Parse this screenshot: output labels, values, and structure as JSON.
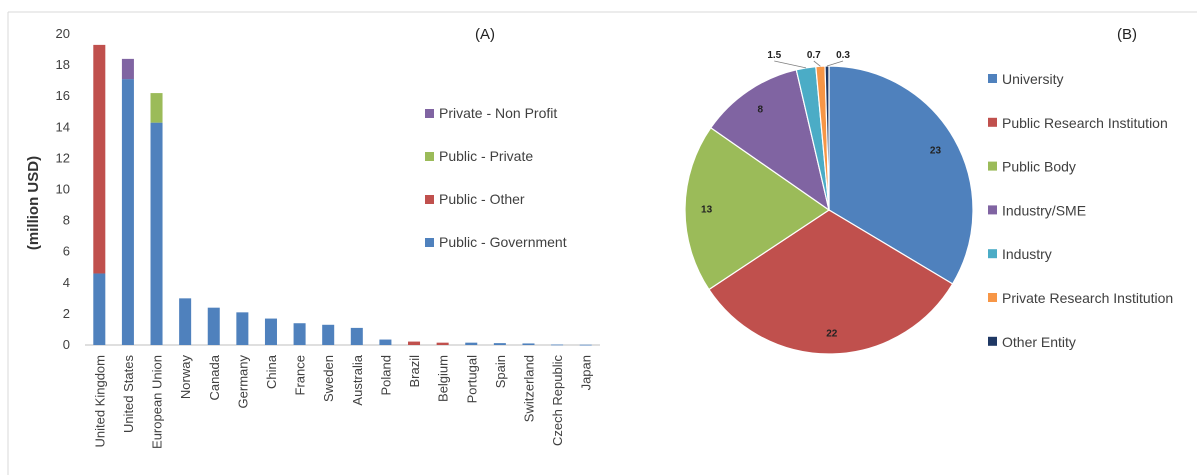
{
  "chart_data": [
    {
      "type": "bar",
      "stacked": true,
      "panel_label": "(A)",
      "title": "",
      "xlabel": "",
      "ylabel": "(million USD)",
      "ylim": [
        0,
        20
      ],
      "yticks": [
        0,
        2,
        4,
        6,
        8,
        10,
        12,
        14,
        16,
        18,
        20
      ],
      "grid": false,
      "legend_position": "right",
      "categories": [
        "United Kingdom",
        "United States",
        "European Union",
        "Norway",
        "Canada",
        "Germany",
        "China",
        "France",
        "Sweden",
        "Australia",
        "Poland",
        "Brazil",
        "Belgium",
        "Portugal",
        "Spain",
        "Switzerland",
        "Czech Republic",
        "Japan"
      ],
      "series": [
        {
          "name": "Public - Government",
          "color": "#4f81bd",
          "values": [
            4.6,
            17.1,
            14.3,
            3.0,
            2.4,
            2.1,
            1.7,
            1.4,
            1.3,
            1.1,
            0.35,
            0.0,
            0.0,
            0.15,
            0.12,
            0.1,
            0.03,
            0.02
          ]
        },
        {
          "name": "Public - Other",
          "color": "#c0504d",
          "values": [
            14.7,
            0.0,
            0.0,
            0.0,
            0.0,
            0.0,
            0.0,
            0.0,
            0.0,
            0.0,
            0.0,
            0.22,
            0.15,
            0.0,
            0.0,
            0.0,
            0.0,
            0.0
          ]
        },
        {
          "name": "Public - Private",
          "color": "#9bbb59",
          "values": [
            0.0,
            0.0,
            1.9,
            0.0,
            0.0,
            0.0,
            0.0,
            0.0,
            0.0,
            0.0,
            0.0,
            0.0,
            0.0,
            0.0,
            0.0,
            0.0,
            0.0,
            0.0
          ]
        },
        {
          "name": "Private - Non Profit",
          "color": "#8064a2",
          "values": [
            0.0,
            1.3,
            0.0,
            0.0,
            0.0,
            0.0,
            0.0,
            0.0,
            0.0,
            0.0,
            0.0,
            0.0,
            0.0,
            0.0,
            0.0,
            0.0,
            0.0,
            0.0
          ]
        }
      ],
      "legend_order": [
        "Private - Non Profit",
        "Public - Private",
        "Public - Other",
        "Public - Government"
      ]
    },
    {
      "type": "pie",
      "panel_label": "(B)",
      "title": "",
      "legend_position": "right",
      "slices": [
        {
          "name": "University",
          "value": 23,
          "label": "23",
          "color": "#4f81bd"
        },
        {
          "name": "Public Research Institution",
          "value": 22,
          "label": "22",
          "color": "#c0504d"
        },
        {
          "name": "Public Body",
          "value": 13,
          "label": "13",
          "color": "#9bbb59"
        },
        {
          "name": "Industry/SME",
          "value": 8,
          "label": "8",
          "color": "#8064a2"
        },
        {
          "name": "Industry",
          "value": 1.5,
          "label": "1.5",
          "color": "#4bacc6"
        },
        {
          "name": "Private Research Institution",
          "value": 0.7,
          "label": "0.7",
          "color": "#f79646"
        },
        {
          "name": "Other Entity",
          "value": 0.3,
          "label": "0.3",
          "color": "#1f3864"
        }
      ]
    }
  ]
}
